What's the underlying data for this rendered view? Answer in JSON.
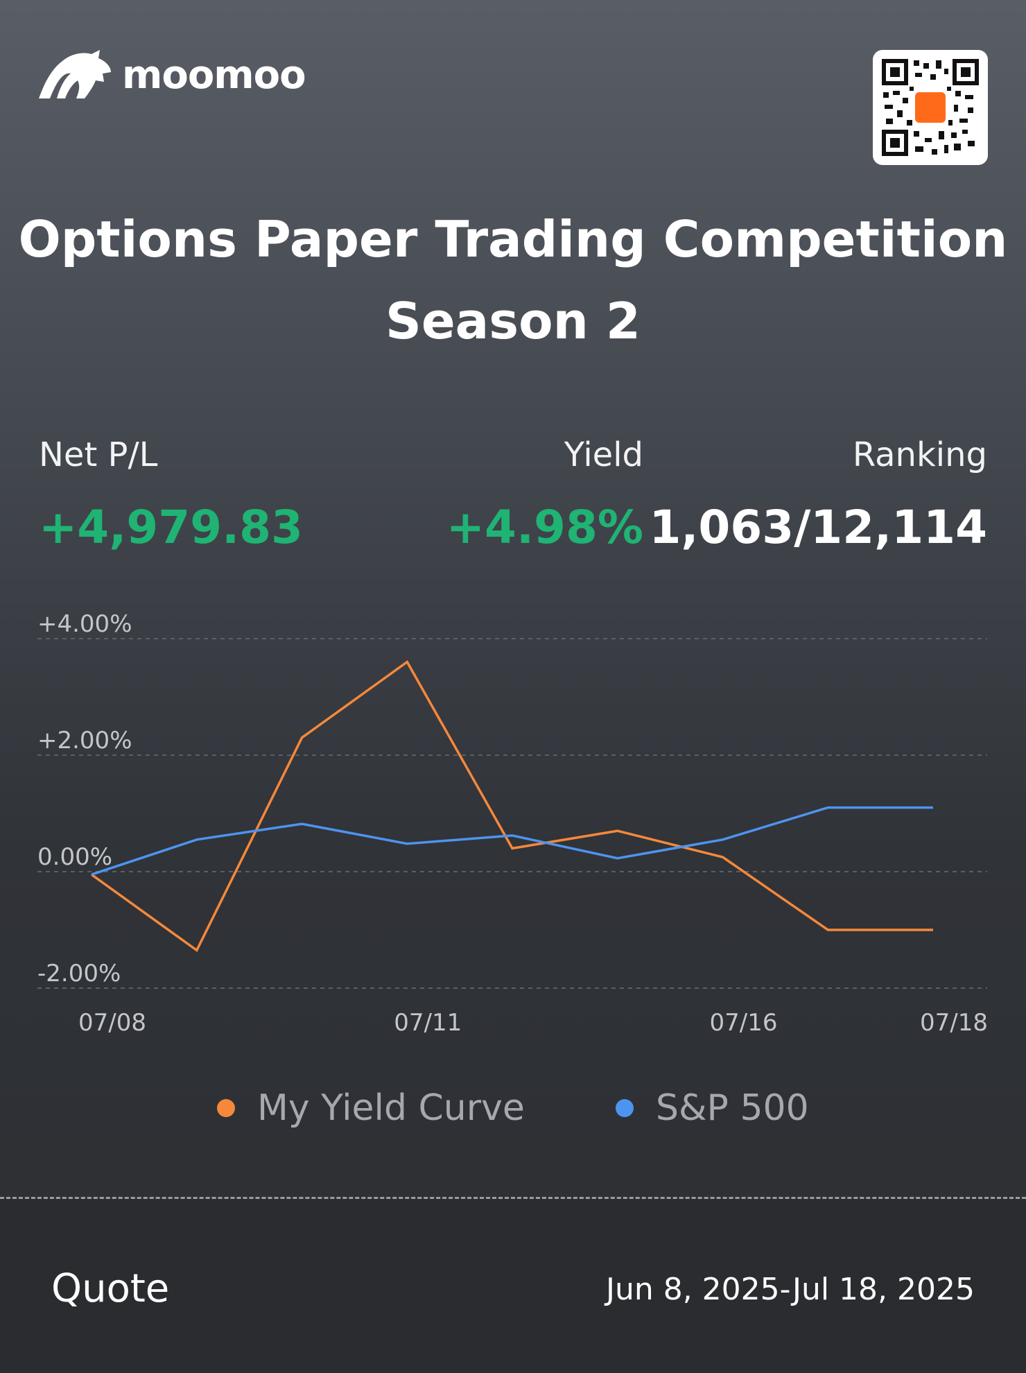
{
  "brand": {
    "name": "moomoo",
    "logo_icon": "bull-logo-icon",
    "qr_icon": "qr-code-icon"
  },
  "title": {
    "line1": "Options Paper Trading Competition",
    "line2": "Season 2"
  },
  "stats": {
    "net_pl": {
      "label": "Net P/L",
      "value": "+4,979.83"
    },
    "yield": {
      "label": "Yield",
      "value": "+4.98%"
    },
    "ranking": {
      "label": "Ranking",
      "value": "1,063/12,114"
    }
  },
  "colors": {
    "positive": "#1fb374",
    "my_curve": "#f5883a",
    "sp500": "#4d94f0",
    "grid": "#5c5f65",
    "tick": "#c4c6ca"
  },
  "chart_data": {
    "type": "line",
    "y_tick_labels": [
      "+4.00%",
      "+2.00%",
      "0.00%",
      "-2.00%"
    ],
    "y_ticks": [
      4,
      2,
      0,
      -2
    ],
    "ylim": [
      -2,
      4
    ],
    "x_tick_labels": [
      "07/08",
      "07/11",
      "07/16",
      "07/18"
    ],
    "x_tick_index": [
      0,
      3,
      6,
      8
    ],
    "x_count": 9,
    "grid": "dashed horizontal",
    "legend": "bottom",
    "series": [
      {
        "name": "My Yield Curve",
        "values": [
          -0.05,
          -1.35,
          2.3,
          3.6,
          0.4,
          0.7,
          0.25,
          -1.0,
          -1.0
        ]
      },
      {
        "name": "S&P 500",
        "values": [
          -0.05,
          0.55,
          0.82,
          0.48,
          0.62,
          0.23,
          0.55,
          1.1,
          1.1
        ]
      }
    ]
  },
  "footer": {
    "quote_label": "Quote",
    "date_range": "Jun 8, 2025-Jul 18, 2025"
  }
}
